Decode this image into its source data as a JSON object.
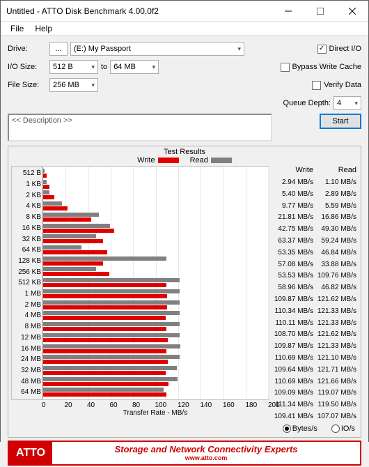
{
  "window": {
    "title": "Untitled - ATTO Disk Benchmark 4.00.0f2",
    "menus": [
      "File",
      "Help"
    ]
  },
  "form": {
    "drive_label": "Drive:",
    "drive_value": "(E:) My Passport",
    "browse": "...",
    "io_label": "I/O Size:",
    "io_from": "512 B",
    "io_to_label": "to",
    "io_to": "64 MB",
    "filesize_label": "File Size:",
    "filesize_value": "256 MB",
    "direct_io": "Direct I/O",
    "bypass": "Bypass Write Cache",
    "verify": "Verify Data",
    "queue_label": "Queue Depth:",
    "queue_value": "4",
    "description_placeholder": "<< Description >>",
    "start": "Start"
  },
  "results": {
    "title": "Test Results",
    "write_label": "Write",
    "read_label": "Read",
    "xaxis_label": "Transfer Rate - MB/s",
    "xmax": 200,
    "xtick_step": 20,
    "xticks": [
      "0",
      "20",
      "40",
      "60",
      "80",
      "100",
      "120",
      "140",
      "160",
      "180",
      "200"
    ],
    "write_color": "#e00000",
    "read_color": "#808080",
    "grid_color": "#e8e8e8",
    "bytes_label": "Bytes/s",
    "io_label": "IO/s",
    "rows": [
      {
        "label": "512 B",
        "write": 2.94,
        "read": 1.1,
        "write_s": "2.94 MB/s",
        "read_s": "1.10 MB/s"
      },
      {
        "label": "1 KB",
        "write": 5.4,
        "read": 2.89,
        "write_s": "5.40 MB/s",
        "read_s": "2.89 MB/s"
      },
      {
        "label": "2 KB",
        "write": 9.77,
        "read": 5.59,
        "write_s": "9.77 MB/s",
        "read_s": "5.59 MB/s"
      },
      {
        "label": "4 KB",
        "write": 21.81,
        "read": 16.86,
        "write_s": "21.81 MB/s",
        "read_s": "16.86 MB/s"
      },
      {
        "label": "8 KB",
        "write": 42.75,
        "read": 49.3,
        "write_s": "42.75 MB/s",
        "read_s": "49.30 MB/s"
      },
      {
        "label": "16 KB",
        "write": 63.37,
        "read": 59.24,
        "write_s": "63.37 MB/s",
        "read_s": "59.24 MB/s"
      },
      {
        "label": "32 KB",
        "write": 53.35,
        "read": 46.84,
        "write_s": "53.35 MB/s",
        "read_s": "46.84 MB/s"
      },
      {
        "label": "64 KB",
        "write": 57.08,
        "read": 33.88,
        "write_s": "57.08 MB/s",
        "read_s": "33.88 MB/s"
      },
      {
        "label": "128 KB",
        "write": 53.53,
        "read": 109.76,
        "write_s": "53.53 MB/s",
        "read_s": "109.76 MB/s"
      },
      {
        "label": "256 KB",
        "write": 58.96,
        "read": 46.82,
        "write_s": "58.96 MB/s",
        "read_s": "46.82 MB/s"
      },
      {
        "label": "512 KB",
        "write": 109.87,
        "read": 121.62,
        "write_s": "109.87 MB/s",
        "read_s": "121.62 MB/s"
      },
      {
        "label": "1 MB",
        "write": 110.34,
        "read": 121.33,
        "write_s": "110.34 MB/s",
        "read_s": "121.33 MB/s"
      },
      {
        "label": "2 MB",
        "write": 110.11,
        "read": 121.33,
        "write_s": "110.11 MB/s",
        "read_s": "121.33 MB/s"
      },
      {
        "label": "4 MB",
        "write": 108.7,
        "read": 121.62,
        "write_s": "108.70 MB/s",
        "read_s": "121.62 MB/s"
      },
      {
        "label": "8 MB",
        "write": 109.87,
        "read": 121.33,
        "write_s": "109.87 MB/s",
        "read_s": "121.33 MB/s"
      },
      {
        "label": "12 MB",
        "write": 110.69,
        "read": 121.1,
        "write_s": "110.69 MB/s",
        "read_s": "121.10 MB/s"
      },
      {
        "label": "16 MB",
        "write": 109.64,
        "read": 121.71,
        "write_s": "109.64 MB/s",
        "read_s": "121.71 MB/s"
      },
      {
        "label": "24 MB",
        "write": 110.69,
        "read": 121.66,
        "write_s": "110.69 MB/s",
        "read_s": "121.66 MB/s"
      },
      {
        "label": "32 MB",
        "write": 109.09,
        "read": 119.07,
        "write_s": "109.09 MB/s",
        "read_s": "119.07 MB/s"
      },
      {
        "label": "48 MB",
        "write": 111.34,
        "read": 119.5,
        "write_s": "111.34 MB/s",
        "read_s": "119.50 MB/s"
      },
      {
        "label": "64 MB",
        "write": 109.41,
        "read": 107.07,
        "write_s": "109.41 MB/s",
        "read_s": "107.07 MB/s"
      }
    ]
  },
  "footer": {
    "logo": "ATTO",
    "line1": "Storage and Network Connectivity Experts",
    "line2": "www.atto.com"
  }
}
